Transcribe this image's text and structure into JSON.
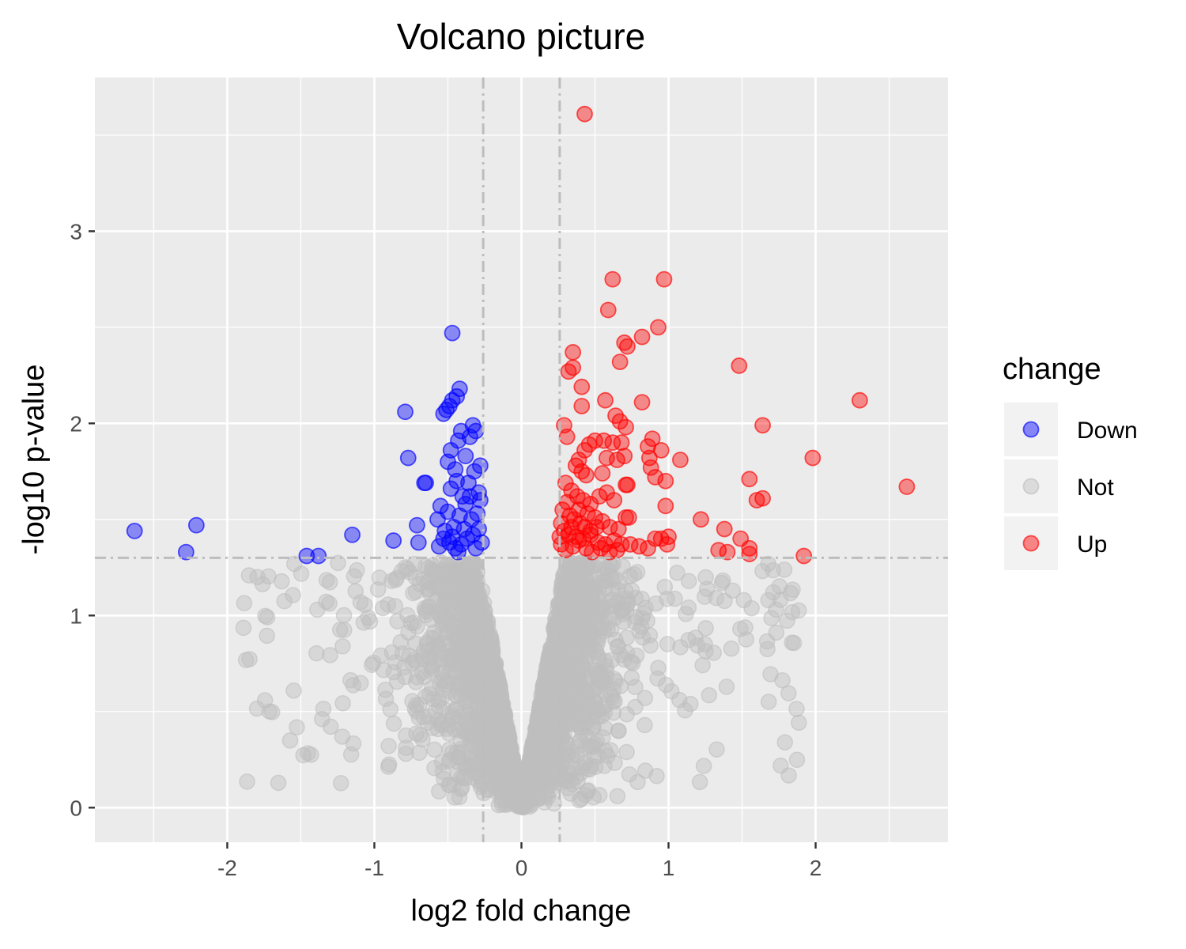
{
  "chart_data": {
    "type": "scatter",
    "title": "Volcano picture",
    "xlabel": "log2 fold change",
    "ylabel": "-log10 p-value",
    "xlim": [
      -2.9,
      2.9
    ],
    "ylim": [
      -0.18,
      3.8
    ],
    "xticks": [
      -2,
      -1,
      0,
      1,
      2
    ],
    "xtick_labels": [
      "-2",
      "-1",
      "0",
      "1",
      "2"
    ],
    "yticks": [
      0,
      1,
      2,
      3
    ],
    "ytick_labels": [
      "0",
      "1",
      "2",
      "3"
    ],
    "grid": true,
    "thresholds": {
      "x": [
        -0.26,
        0.26
      ],
      "y": 1.3
    },
    "legend": {
      "title": "change",
      "position": "right",
      "entries": [
        {
          "label": "Down",
          "color": "#0000ff"
        },
        {
          "label": "Not",
          "color": "#bebebe"
        },
        {
          "label": "Up",
          "color": "#ff0000"
        }
      ]
    },
    "series": [
      {
        "name": "Down",
        "color": "#0000ff",
        "points": [
          [
            -2.63,
            1.44
          ],
          [
            -2.21,
            1.47
          ],
          [
            -2.28,
            1.33
          ],
          [
            -1.46,
            1.31
          ],
          [
            -1.38,
            1.31
          ],
          [
            -1.15,
            1.42
          ],
          [
            -0.87,
            1.39
          ],
          [
            -0.79,
            2.06
          ],
          [
            -0.77,
            1.82
          ],
          [
            -0.71,
            1.47
          ],
          [
            -0.7,
            1.38
          ],
          [
            -0.66,
            1.69
          ],
          [
            -0.65,
            1.69
          ],
          [
            -0.57,
            1.5
          ],
          [
            -0.55,
            1.57
          ],
          [
            -0.53,
            2.05
          ],
          [
            -0.51,
            2.07
          ],
          [
            -0.49,
            2.09
          ],
          [
            -0.47,
            2.12
          ],
          [
            -0.44,
            2.14
          ],
          [
            -0.42,
            2.18
          ],
          [
            -0.47,
            2.47
          ],
          [
            -0.5,
            1.8
          ],
          [
            -0.48,
            1.86
          ],
          [
            -0.45,
            1.76
          ],
          [
            -0.43,
            1.91
          ],
          [
            -0.41,
            1.96
          ],
          [
            -0.38,
            1.83
          ],
          [
            -0.35,
            1.93
          ],
          [
            -0.33,
            1.99
          ],
          [
            -0.31,
            1.96
          ],
          [
            -0.28,
            1.78
          ],
          [
            -0.29,
            1.64
          ],
          [
            -0.32,
            1.75
          ],
          [
            -0.36,
            1.69
          ],
          [
            -0.4,
            1.62
          ],
          [
            -0.44,
            1.7
          ],
          [
            -0.48,
            1.66
          ],
          [
            -0.52,
            1.44
          ],
          [
            -0.5,
            1.54
          ],
          [
            -0.46,
            1.46
          ],
          [
            -0.42,
            1.52
          ],
          [
            -0.38,
            1.58
          ],
          [
            -0.34,
            1.5
          ],
          [
            -0.3,
            1.53
          ],
          [
            -0.29,
            1.45
          ],
          [
            -0.33,
            1.42
          ],
          [
            -0.37,
            1.4
          ],
          [
            -0.41,
            1.37
          ],
          [
            -0.45,
            1.35
          ],
          [
            -0.49,
            1.38
          ],
          [
            -0.53,
            1.4
          ],
          [
            -0.56,
            1.36
          ],
          [
            -0.31,
            1.35
          ],
          [
            -0.27,
            1.38
          ],
          [
            -0.28,
            1.6
          ],
          [
            -0.35,
            1.62
          ],
          [
            -0.39,
            1.45
          ],
          [
            -0.43,
            1.33
          ],
          [
            -0.47,
            1.41
          ]
        ]
      },
      {
        "name": "Up",
        "color": "#ff0000",
        "points": [
          [
            0.43,
            3.61
          ],
          [
            0.62,
            2.75
          ],
          [
            0.97,
            2.75
          ],
          [
            0.59,
            2.59
          ],
          [
            0.93,
            2.5
          ],
          [
            0.82,
            2.45
          ],
          [
            0.7,
            2.42
          ],
          [
            0.72,
            2.4
          ],
          [
            0.35,
            2.37
          ],
          [
            0.67,
            2.32
          ],
          [
            0.32,
            2.27
          ],
          [
            0.35,
            2.29
          ],
          [
            1.48,
            2.3
          ],
          [
            0.41,
            2.19
          ],
          [
            0.57,
            2.12
          ],
          [
            0.82,
            2.11
          ],
          [
            0.41,
            2.09
          ],
          [
            0.64,
            2.04
          ],
          [
            2.3,
            2.12
          ],
          [
            0.29,
            1.99
          ],
          [
            0.67,
            2.01
          ],
          [
            0.71,
            1.98
          ],
          [
            1.64,
            1.99
          ],
          [
            0.31,
            1.93
          ],
          [
            0.5,
            1.91
          ],
          [
            0.46,
            1.89
          ],
          [
            0.56,
            1.91
          ],
          [
            0.62,
            1.9
          ],
          [
            0.68,
            1.9
          ],
          [
            0.89,
            1.92
          ],
          [
            0.86,
            1.88
          ],
          [
            0.95,
            1.86
          ],
          [
            0.43,
            1.86
          ],
          [
            0.39,
            1.81
          ],
          [
            0.58,
            1.82
          ],
          [
            0.65,
            1.81
          ],
          [
            0.7,
            1.83
          ],
          [
            0.87,
            1.82
          ],
          [
            0.88,
            1.77
          ],
          [
            1.08,
            1.81
          ],
          [
            1.98,
            1.82
          ],
          [
            0.37,
            1.78
          ],
          [
            0.41,
            1.75
          ],
          [
            0.44,
            1.73
          ],
          [
            0.55,
            1.74
          ],
          [
            0.91,
            1.72
          ],
          [
            0.98,
            1.7
          ],
          [
            1.55,
            1.71
          ],
          [
            2.62,
            1.67
          ],
          [
            0.3,
            1.69
          ],
          [
            0.34,
            1.65
          ],
          [
            0.38,
            1.62
          ],
          [
            0.42,
            1.6
          ],
          [
            0.47,
            1.58
          ],
          [
            0.53,
            1.62
          ],
          [
            0.58,
            1.64
          ],
          [
            0.63,
            1.6
          ],
          [
            0.71,
            1.68
          ],
          [
            0.72,
            1.68
          ],
          [
            0.98,
            1.57
          ],
          [
            1.6,
            1.6
          ],
          [
            1.64,
            1.61
          ],
          [
            0.28,
            1.55
          ],
          [
            0.33,
            1.52
          ],
          [
            0.36,
            1.5
          ],
          [
            0.4,
            1.48
          ],
          [
            0.45,
            1.53
          ],
          [
            0.5,
            1.51
          ],
          [
            0.55,
            1.49
          ],
          [
            0.6,
            1.46
          ],
          [
            0.66,
            1.45
          ],
          [
            0.71,
            1.51
          ],
          [
            0.73,
            1.51
          ],
          [
            1.22,
            1.5
          ],
          [
            1.38,
            1.45
          ],
          [
            0.29,
            1.44
          ],
          [
            0.32,
            1.42
          ],
          [
            0.37,
            1.41
          ],
          [
            0.42,
            1.4
          ],
          [
            0.47,
            1.42
          ],
          [
            0.52,
            1.38
          ],
          [
            0.57,
            1.37
          ],
          [
            0.63,
            1.39
          ],
          [
            0.68,
            1.37
          ],
          [
            0.74,
            1.37
          ],
          [
            0.8,
            1.36
          ],
          [
            0.86,
            1.35
          ],
          [
            0.91,
            1.4
          ],
          [
            0.95,
            1.4
          ],
          [
            0.99,
            1.37
          ],
          [
            1.0,
            1.41
          ],
          [
            1.34,
            1.34
          ],
          [
            1.4,
            1.33
          ],
          [
            1.49,
            1.4
          ],
          [
            1.55,
            1.35
          ],
          [
            1.55,
            1.32
          ],
          [
            1.92,
            1.31
          ],
          [
            0.27,
            1.37
          ],
          [
            0.3,
            1.34
          ],
          [
            0.35,
            1.36
          ],
          [
            0.39,
            1.39
          ],
          [
            0.44,
            1.35
          ],
          [
            0.48,
            1.33
          ],
          [
            0.54,
            1.35
          ],
          [
            0.6,
            1.33
          ],
          [
            0.65,
            1.34
          ],
          [
            0.27,
            1.48
          ],
          [
            0.31,
            1.59
          ],
          [
            0.34,
            1.46
          ],
          [
            0.26,
            1.41
          ],
          [
            0.39,
            1.55
          ],
          [
            0.43,
            1.46
          ],
          [
            0.47,
            1.44
          ],
          [
            0.51,
            1.46
          ]
        ]
      }
    ],
    "not_significant": {
      "name": "Not",
      "color": "#bebebe",
      "count": 3000,
      "x_range": [
        -1.9,
        2.3
      ],
      "y_range": [
        0,
        1.3
      ]
    }
  }
}
